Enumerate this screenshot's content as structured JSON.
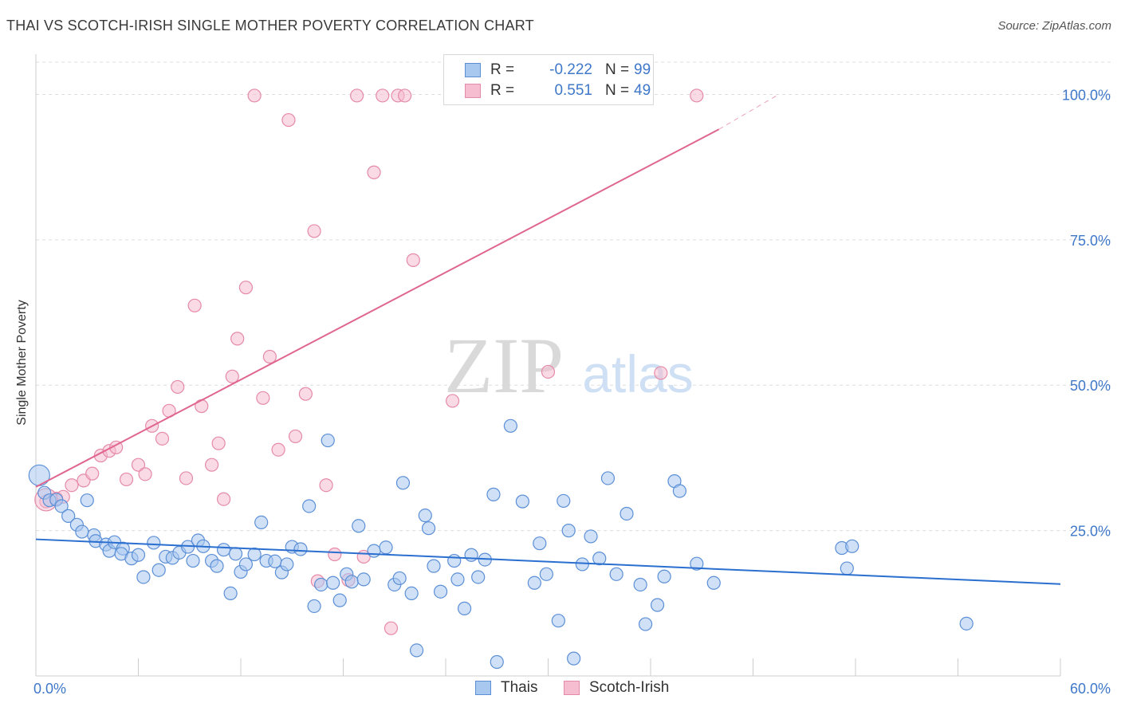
{
  "header": {
    "title": "THAI VS SCOTCH-IRISH SINGLE MOTHER POVERTY CORRELATION CHART",
    "source": "Source: ZipAtlas.com"
  },
  "watermark": {
    "zip": "ZIP",
    "atlas": "atlas"
  },
  "colors": {
    "thais_fill": "#a9c8f0",
    "thais_stroke": "#5b8fd6",
    "thais_line": "#2a6fcf",
    "scotch_fill": "#f6bcd0",
    "scotch_stroke": "#e58aa8",
    "scotch_line": "#e0668f",
    "axis_label": "#3f78c9",
    "grid": "#dddddd"
  },
  "stats_legend": {
    "rows": [
      {
        "r_label": "R =",
        "r_value": "-0.222",
        "n_label": "N =",
        "n_value": "99",
        "series": "thais"
      },
      {
        "r_label": "R =",
        "r_value": "0.551",
        "n_label": "N =",
        "n_value": "49",
        "series": "scotch"
      }
    ]
  },
  "chart_data": {
    "type": "scatter",
    "title": "THAI VS SCOTCH-IRISH SINGLE MOTHER POVERTY CORRELATION CHART",
    "xlabel": "",
    "ylabel": "Single Mother Poverty",
    "xlim": [
      0,
      60
    ],
    "ylim": [
      0,
      105
    ],
    "x_tick_labels": [
      {
        "value": 0,
        "label": "0.0%"
      },
      {
        "value": 60,
        "label": "60.0%"
      }
    ],
    "y_tick_labels": [
      {
        "value": 25,
        "label": "25.0%"
      },
      {
        "value": 50,
        "label": "50.0%"
      },
      {
        "value": 75,
        "label": "75.0%"
      },
      {
        "value": 100,
        "label": "100.0%"
      }
    ],
    "y_grid": [
      25,
      50,
      75,
      100
    ],
    "legend_position": "bottom-center",
    "series": [
      {
        "name": "Thais",
        "trend": {
          "x1": 0,
          "y1": 23.5,
          "x2": 60,
          "y2": 15.8
        },
        "points": [
          [
            0.2,
            34.5
          ],
          [
            0.5,
            31.5
          ],
          [
            0.8,
            30.2
          ],
          [
            1.2,
            30.3
          ],
          [
            1.5,
            29.2
          ],
          [
            3.0,
            30.2
          ],
          [
            1.9,
            27.5
          ],
          [
            2.4,
            26.0
          ],
          [
            2.7,
            24.8
          ],
          [
            3.4,
            24.2
          ],
          [
            3.5,
            23.2
          ],
          [
            4.1,
            22.6
          ],
          [
            4.3,
            21.5
          ],
          [
            4.6,
            23.0
          ],
          [
            5.1,
            21.9
          ],
          [
            5.0,
            21.0
          ],
          [
            5.6,
            20.2
          ],
          [
            6.0,
            20.8
          ],
          [
            6.3,
            17.0
          ],
          [
            6.9,
            22.9
          ],
          [
            7.2,
            18.2
          ],
          [
            7.6,
            20.5
          ],
          [
            8.0,
            20.3
          ],
          [
            8.4,
            21.2
          ],
          [
            8.9,
            22.2
          ],
          [
            9.2,
            19.8
          ],
          [
            9.5,
            23.3
          ],
          [
            9.8,
            22.3
          ],
          [
            10.3,
            19.8
          ],
          [
            10.6,
            18.9
          ],
          [
            11.0,
            21.7
          ],
          [
            11.4,
            14.2
          ],
          [
            11.7,
            21.0
          ],
          [
            12.0,
            17.9
          ],
          [
            12.3,
            19.2
          ],
          [
            12.8,
            20.9
          ],
          [
            13.2,
            26.4
          ],
          [
            13.5,
            19.8
          ],
          [
            14.0,
            19.7
          ],
          [
            14.4,
            17.8
          ],
          [
            14.7,
            19.2
          ],
          [
            15.0,
            22.2
          ],
          [
            15.5,
            21.8
          ],
          [
            16.0,
            29.2
          ],
          [
            16.3,
            12.0
          ],
          [
            16.7,
            15.7
          ],
          [
            17.1,
            40.5
          ],
          [
            17.4,
            16.0
          ],
          [
            17.8,
            13.0
          ],
          [
            18.2,
            17.5
          ],
          [
            18.5,
            16.2
          ],
          [
            18.9,
            25.8
          ],
          [
            19.2,
            16.6
          ],
          [
            19.8,
            21.5
          ],
          [
            20.5,
            22.1
          ],
          [
            21.0,
            15.7
          ],
          [
            21.3,
            16.8
          ],
          [
            21.5,
            33.2
          ],
          [
            22.0,
            14.2
          ],
          [
            22.3,
            4.4
          ],
          [
            22.8,
            27.6
          ],
          [
            23.0,
            25.4
          ],
          [
            23.3,
            18.9
          ],
          [
            23.7,
            14.5
          ],
          [
            24.5,
            19.8
          ],
          [
            24.7,
            16.6
          ],
          [
            25.1,
            11.6
          ],
          [
            25.5,
            20.8
          ],
          [
            25.9,
            17.0
          ],
          [
            26.3,
            20.0
          ],
          [
            26.8,
            31.2
          ],
          [
            27.0,
            2.4
          ],
          [
            27.8,
            43.0
          ],
          [
            28.5,
            30.0
          ],
          [
            29.2,
            16.0
          ],
          [
            29.5,
            22.8
          ],
          [
            29.9,
            17.5
          ],
          [
            30.6,
            9.5
          ],
          [
            30.9,
            30.1
          ],
          [
            31.2,
            25.0
          ],
          [
            31.5,
            3.0
          ],
          [
            32.0,
            19.2
          ],
          [
            32.5,
            24.0
          ],
          [
            33.0,
            20.2
          ],
          [
            33.5,
            34.0
          ],
          [
            34.0,
            17.5
          ],
          [
            34.6,
            27.9
          ],
          [
            35.4,
            15.7
          ],
          [
            35.7,
            8.9
          ],
          [
            36.4,
            12.2
          ],
          [
            36.8,
            17.1
          ],
          [
            37.4,
            33.5
          ],
          [
            37.7,
            31.8
          ],
          [
            38.7,
            19.3
          ],
          [
            39.7,
            16.0
          ],
          [
            47.2,
            22.0
          ],
          [
            47.5,
            18.5
          ],
          [
            47.8,
            22.3
          ],
          [
            54.5,
            9.0
          ]
        ]
      },
      {
        "name": "Scotch-Irish",
        "trend": {
          "x1": 0,
          "y1": 32.5,
          "x2": 40,
          "y2": 94.0,
          "dash_x2": 43.5,
          "dash_y2": 100
        },
        "points": [
          [
            0.6,
            30.0
          ],
          [
            1.2,
            30.5
          ],
          [
            1.6,
            30.8
          ],
          [
            2.1,
            32.8
          ],
          [
            2.8,
            33.6
          ],
          [
            3.3,
            34.8
          ],
          [
            3.8,
            37.9
          ],
          [
            4.3,
            38.7
          ],
          [
            4.7,
            39.3
          ],
          [
            5.3,
            33.8
          ],
          [
            6.0,
            36.3
          ],
          [
            6.4,
            34.7
          ],
          [
            6.8,
            43.0
          ],
          [
            7.4,
            40.8
          ],
          [
            7.8,
            45.6
          ],
          [
            8.3,
            49.7
          ],
          [
            8.8,
            34.0
          ],
          [
            9.3,
            63.7
          ],
          [
            9.7,
            46.4
          ],
          [
            10.3,
            36.3
          ],
          [
            10.7,
            40.0
          ],
          [
            11.5,
            51.5
          ],
          [
            11.8,
            58.0
          ],
          [
            12.3,
            66.8
          ],
          [
            12.8,
            99.8
          ],
          [
            13.3,
            47.8
          ],
          [
            13.7,
            54.9
          ],
          [
            14.2,
            38.9
          ],
          [
            14.8,
            95.6
          ],
          [
            15.2,
            41.2
          ],
          [
            15.8,
            48.5
          ],
          [
            16.3,
            76.5
          ],
          [
            17.0,
            32.8
          ],
          [
            17.5,
            20.9
          ],
          [
            18.3,
            16.5
          ],
          [
            18.8,
            99.8
          ],
          [
            19.8,
            86.6
          ],
          [
            20.3,
            99.8
          ],
          [
            20.8,
            8.2
          ],
          [
            21.2,
            99.8
          ],
          [
            21.6,
            99.8
          ],
          [
            22.1,
            71.5
          ],
          [
            24.4,
            47.3
          ],
          [
            30.0,
            52.3
          ],
          [
            36.6,
            52.1
          ],
          [
            38.7,
            99.8
          ],
          [
            19.2,
            20.5
          ],
          [
            16.5,
            16.3
          ],
          [
            11.0,
            30.4
          ]
        ]
      }
    ]
  },
  "bottom_legend": {
    "items": [
      {
        "label": "Thais",
        "series": "thais"
      },
      {
        "label": "Scotch-Irish",
        "series": "scotch"
      }
    ]
  }
}
